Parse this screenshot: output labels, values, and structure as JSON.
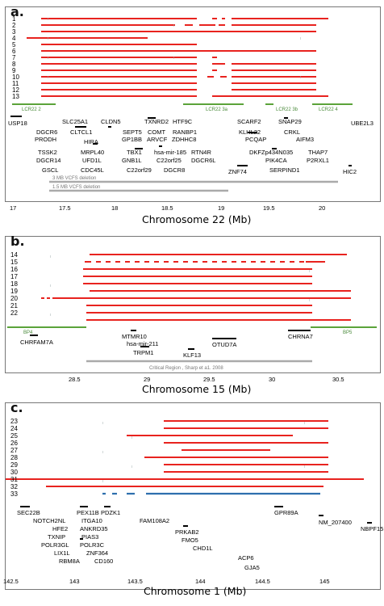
{
  "panels": [
    {
      "label": "a.",
      "axis_title": "Chromosome 22 (Mb)",
      "ticks": [
        "17",
        "17.5",
        "18",
        "18.5",
        "19",
        "19.5",
        "20"
      ],
      "rows": [
        "1",
        "2",
        "3",
        "4",
        "5",
        "6",
        "7",
        "8",
        "9",
        "10",
        "11",
        "12",
        "13"
      ],
      "lcrs": [
        "LCR22  2",
        "LCR22  3a",
        "LCR22  3b",
        "LCR22  4"
      ],
      "genes": [
        "USP18",
        "DGCR6",
        "PRODH",
        "SLC25A1",
        "CLTCL1",
        "CLDN5",
        "SEPT5",
        "GP1BB",
        "TXNRD2",
        "COMT",
        "ARVCF",
        "HTF9C",
        "RANBP1",
        "ZDHHC8",
        "SCARF2",
        "KLHL22",
        "SNAP29",
        "CRKL",
        "UBE2L3",
        "TSSK2",
        "DGCR14",
        "GSCL",
        "HIRA",
        "MRPL40",
        "UFD1L",
        "CDC45L",
        "TBX1",
        "GNB1L",
        "C22orf29",
        "hsa-mir-185",
        "C22orf25",
        "DGCR8",
        "RTN4R",
        "DGCR6L",
        "PCQAP",
        "AIFM3",
        "DKFZp434N035",
        "THAP7",
        "PIK4CA",
        "P2RXL1",
        "ZNF74",
        "SERPIND1",
        "HIC2"
      ],
      "deletions": [
        "3 MB  VCFS  deletion",
        "1.5  MB  VCFS  deletion"
      ]
    },
    {
      "label": "b.",
      "axis_title": "Chromosome 15 (Mb)",
      "ticks": [
        "28.5",
        "29",
        "29.5",
        "30",
        "30.5"
      ],
      "rows": [
        "14",
        "15",
        "16",
        "17",
        "18",
        "19",
        "20",
        "21",
        "22"
      ],
      "bps": [
        "BP4",
        "BP5"
      ],
      "genes": [
        "CHRFAM7A",
        "MTMR10",
        "hsa-mir-211",
        "TRPM1",
        "KLF13",
        "OTUD7A",
        "CHRNA7"
      ],
      "region": "Critical   Region ,  Sharp    et a1. 2008"
    },
    {
      "label": "c.",
      "axis_title": "Chromosome 1 (Mb)",
      "ticks": [
        "142.5",
        "143",
        "143.5",
        "144",
        "144.5",
        "145"
      ],
      "rows": [
        "23",
        "24",
        "25",
        "26",
        "27",
        "28",
        "29",
        "30",
        "31",
        "32",
        "33"
      ],
      "genes": [
        "SEC22B",
        "NOTCH2NL",
        "HFE2",
        "TXNIP",
        "POLR3GL",
        "LIX1L",
        "RBM8A",
        "PEX11B",
        "ITGA10",
        "ANKRD35",
        "PIAS3",
        "POLR3C",
        "ZNF364",
        "CD160",
        "PDZK1",
        "FAM108A2",
        "PRKAB2",
        "FMO5",
        "CHD1L",
        "ACP6",
        "GJA5",
        "GPR89A",
        "NM_207400",
        "NBPF15"
      ]
    }
  ],
  "colors": {
    "deletion": "#e8231f",
    "duplication": "#2e6fae",
    "lcr": "#5ba33a",
    "region": "#aaaaaa"
  }
}
